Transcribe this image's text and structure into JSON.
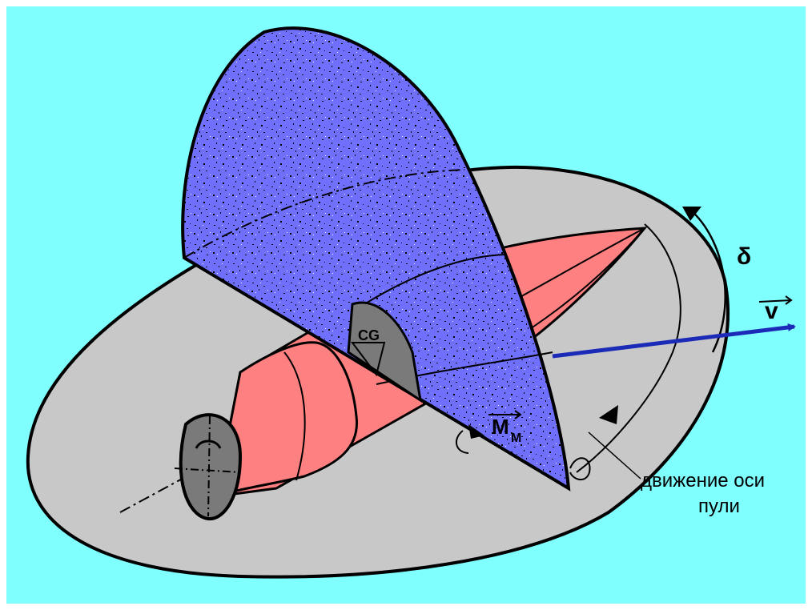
{
  "colors": {
    "background": "#80ffff",
    "frame": "#ffffff",
    "plane": "#c8c8c8",
    "bullet": "#ff8080",
    "bullet_dark": "#7a7a7a",
    "vertical_plane": "#7070ff",
    "velocity_arrow": "#1c2ab8",
    "outline": "#000000"
  },
  "labels": {
    "cg": "CG",
    "delta": "δ",
    "velocity": "v",
    "moment_main": "M",
    "moment_sub": "M",
    "caption_line1": "движение оси",
    "caption_line2": "пули"
  }
}
